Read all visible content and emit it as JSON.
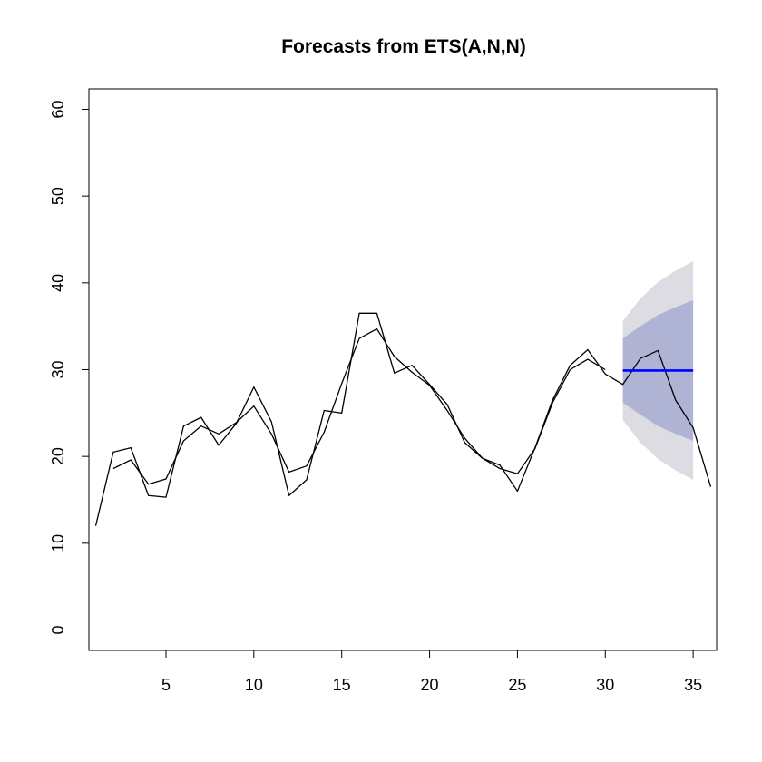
{
  "chart_data": {
    "type": "line",
    "title": "Forecasts from ETS(A,N,N)",
    "xlabel": "",
    "ylabel": "",
    "xlim": [
      1,
      36
    ],
    "ylim": [
      0,
      60
    ],
    "x_ticks": [
      5,
      10,
      15,
      20,
      25,
      30,
      35
    ],
    "y_ticks": [
      0,
      10,
      20,
      30,
      40,
      50,
      60
    ],
    "grid": false,
    "legend": "none",
    "colors": {
      "series": "#000000",
      "forecast": "#0000ff",
      "band80": "#b0b4d4",
      "band95": "#dcdce2"
    },
    "series": [
      {
        "x": [
          1,
          2,
          3,
          4,
          5,
          6,
          7,
          8,
          9,
          10,
          11,
          12,
          13,
          14,
          15,
          16,
          17,
          18,
          19,
          20,
          21,
          22,
          23,
          24,
          25,
          26,
          27,
          28,
          29,
          30,
          31,
          32,
          33,
          34,
          35,
          36
        ],
        "values": [
          12.0,
          20.5,
          21.0,
          15.5,
          15.3,
          23.5,
          24.5,
          21.3,
          23.8,
          28.0,
          24.0,
          15.5,
          17.3,
          25.3,
          25.0,
          36.5,
          36.5,
          29.6,
          30.5,
          28.3,
          26.0,
          21.6,
          19.8,
          19.0,
          16.0,
          21.0,
          26.5,
          30.5,
          32.3,
          29.5,
          28.3,
          31.3,
          32.2,
          26.5,
          23.3,
          16.5
        ]
      },
      {
        "x": [
          2,
          3,
          4,
          5,
          6,
          7,
          8,
          9,
          10,
          11,
          12,
          13,
          14,
          15,
          16,
          17,
          18,
          19,
          20,
          21,
          22,
          23,
          24,
          25,
          26,
          27,
          28,
          29,
          30
        ],
        "values": [
          18.6,
          19.6,
          16.8,
          17.4,
          21.8,
          23.5,
          22.6,
          23.9,
          25.8,
          22.6,
          18.2,
          18.9,
          22.8,
          28.4,
          33.6,
          34.7,
          31.5,
          29.7,
          28.2,
          25.3,
          22.1,
          19.8,
          18.6,
          18.0,
          20.9,
          26.2,
          30.0,
          31.2,
          30.0
        ]
      }
    ],
    "forecast": {
      "x": [
        31,
        32,
        33,
        34,
        35
      ],
      "mean": [
        29.9,
        29.9,
        29.9,
        29.9,
        29.9
      ],
      "lo80": [
        26.2,
        24.8,
        23.5,
        22.6,
        21.8
      ],
      "hi80": [
        33.6,
        35.0,
        36.3,
        37.2,
        38.0
      ],
      "lo95": [
        24.2,
        21.6,
        19.7,
        18.4,
        17.3
      ],
      "hi95": [
        35.6,
        38.2,
        40.1,
        41.4,
        42.5
      ]
    }
  }
}
